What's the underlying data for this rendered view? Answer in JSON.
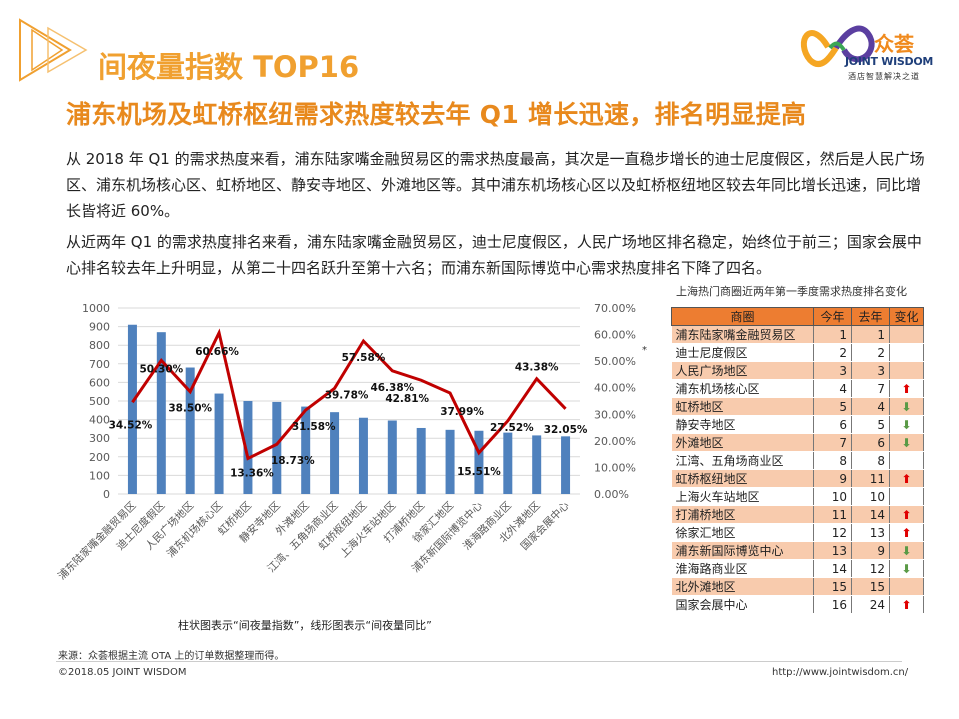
{
  "header": {
    "title": "间夜量指数 TOP16",
    "subtitle": "浦东机场及虹桥枢纽需求热度较去年 Q1 增长迅速，排名明显提高"
  },
  "logo": {
    "zh": "众荟",
    "en": "JOINT WISDOM",
    "tagline": "酒店智慧解决之道"
  },
  "paragraphs": [
    "从 2018 年 Q1 的需求热度来看，浦东陆家嘴金融贸易区的需求热度最高，其次是一直稳步增长的迪士尼度假区，然后是人民广场区、浦东机场核心区、虹桥地区、静安寺地区、外滩地区等。其中浦东机场核心区以及虹桥枢纽地区较去年同比增长迅速，同比增长皆将近 60%。",
    "从近两年 Q1 的需求热度排名来看，浦东陆家嘴金融贸易区，迪士尼度假区，人民广场地区排名稳定，始终位于前三；国家会展中心排名较去年上升明显，从第二十四名跃升至第十六名；而浦东新国际博览中心需求热度排名下降了四名。"
  ],
  "chart_data": {
    "type": "bar+line",
    "categories": [
      "浦东陆家嘴金融贸易区",
      "迪士尼度假区",
      "人民广场地区",
      "浦东机场核心区",
      "虹桥地区",
      "静安寺地区",
      "外滩地区",
      "江湾、五角场商业区",
      "虹桥枢纽地区",
      "上海火车站地区",
      "打浦桥地区",
      "徐家汇地区",
      "浦东新国际博览中心",
      "淮海路商业区",
      "北外滩地区",
      "国家会展中心"
    ],
    "series": [
      {
        "type": "bar",
        "axis": "left",
        "color": "#4f81bd",
        "values": [
          910,
          870,
          680,
          540,
          500,
          495,
          470,
          440,
          410,
          395,
          355,
          345,
          340,
          330,
          315,
          310
        ]
      },
      {
        "type": "line",
        "axis": "right",
        "color": "#c00000",
        "values": [
          34.52,
          50.3,
          38.5,
          60.66,
          13.36,
          18.73,
          31.58,
          39.78,
          57.58,
          46.38,
          42.81,
          37.99,
          15.51,
          27.52,
          43.38,
          32.05
        ],
        "labels": [
          "34.52%",
          "50.30%",
          "38.50%",
          "60.66%",
          "13.36%",
          "18.73%",
          "31.58%",
          "39.78%",
          "57.58%",
          "46.38%",
          "42.81%",
          "37.99%",
          "15.51%",
          "27.52%",
          "43.38%",
          "32.05%"
        ]
      }
    ],
    "y_left": {
      "range": [
        0,
        1000
      ],
      "ticks": [
        "0",
        "100",
        "200",
        "300",
        "400",
        "500",
        "600",
        "700",
        "800",
        "900",
        "1000"
      ]
    },
    "y_right": {
      "range": [
        0,
        70
      ],
      "ticks": [
        "0.00%",
        "10.00%",
        "20.00%",
        "30.00%",
        "40.00%",
        "50.00%",
        "60.00%",
        "70.00%"
      ]
    },
    "grid": true,
    "stray_mark": "*",
    "caption": "柱状图表示“间夜量指数”，线形图表示“间夜量同比”"
  },
  "table": {
    "title": "上海热门商圈近两年第一季度需求热度排名变化",
    "headers": [
      "商圈",
      "今年",
      "去年",
      "变化"
    ],
    "rows": [
      {
        "name": "浦东陆家嘴金融贸易区",
        "now": "1",
        "last": "1",
        "change": ""
      },
      {
        "name": "迪士尼度假区",
        "now": "2",
        "last": "2",
        "change": ""
      },
      {
        "name": "人民广场地区",
        "now": "3",
        "last": "3",
        "change": ""
      },
      {
        "name": "浦东机场核心区",
        "now": "4",
        "last": "7",
        "change": "up"
      },
      {
        "name": "虹桥地区",
        "now": "5",
        "last": "4",
        "change": "down"
      },
      {
        "name": "静安寺地区",
        "now": "6",
        "last": "5",
        "change": "down"
      },
      {
        "name": "外滩地区",
        "now": "7",
        "last": "6",
        "change": "down"
      },
      {
        "name": "江湾、五角场商业区",
        "now": "8",
        "last": "8",
        "change": ""
      },
      {
        "name": "虹桥枢纽地区",
        "now": "9",
        "last": "11",
        "change": "up"
      },
      {
        "name": "上海火车站地区",
        "now": "10",
        "last": "10",
        "change": ""
      },
      {
        "name": "打浦桥地区",
        "now": "11",
        "last": "14",
        "change": "up"
      },
      {
        "name": "徐家汇地区",
        "now": "12",
        "last": "13",
        "change": "up"
      },
      {
        "name": "浦东新国际博览中心",
        "now": "13",
        "last": "9",
        "change": "down"
      },
      {
        "name": "淮海路商业区",
        "now": "14",
        "last": "12",
        "change": "down"
      },
      {
        "name": "北外滩地区",
        "now": "15",
        "last": "15",
        "change": ""
      },
      {
        "name": "国家会展中心",
        "now": "16",
        "last": "24",
        "change": "up"
      }
    ]
  },
  "footer": {
    "source": "来源：众荟根据主流 OTA 上的订单数据整理而得。",
    "copyright": "©2018.05 JOINT WISDOM",
    "url": "http://www.jointwisdom.cn/"
  }
}
